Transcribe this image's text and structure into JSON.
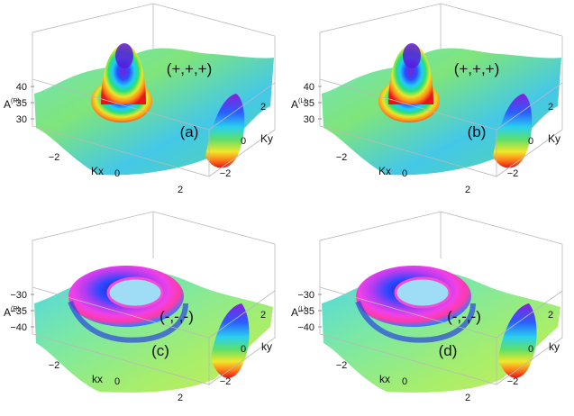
{
  "panels": [
    {
      "label": "(a)",
      "signs": "(+,+,+)",
      "z_axis": {
        "name": "A",
        "superscript": "(R)",
        "ticks": [
          "40",
          "35",
          "30"
        ]
      },
      "x_axis": {
        "name": "Kx",
        "ticks": [
          "−2",
          "0",
          "2"
        ]
      },
      "y_axis": {
        "name": "Ky",
        "ticks": [
          "2",
          "0",
          "−2"
        ]
      },
      "surface": "peak"
    },
    {
      "label": "(b)",
      "signs": "(+,+,+)",
      "z_axis": {
        "name": "A",
        "superscript": "(L)",
        "ticks": [
          "40",
          "35",
          "30"
        ]
      },
      "x_axis": {
        "name": "Kx",
        "ticks": [
          "−2",
          "0",
          "2"
        ]
      },
      "y_axis": {
        "name": "Ky",
        "ticks": [
          "2",
          "0",
          "−2"
        ]
      },
      "surface": "peak"
    },
    {
      "label": "(c)",
      "signs": "(-,-,-)",
      "z_axis": {
        "name": "A",
        "superscript": "(R)",
        "ticks": [
          "−30",
          "−35",
          "−40"
        ]
      },
      "x_axis": {
        "name": "kx",
        "ticks": [
          "−2",
          "0",
          "2"
        ]
      },
      "y_axis": {
        "name": "ky",
        "ticks": [
          "2",
          "0",
          "−2"
        ]
      },
      "surface": "ring"
    },
    {
      "label": "(d)",
      "signs": "(-,-,-)",
      "z_axis": {
        "name": "A",
        "superscript": "(L)",
        "ticks": [
          "−30",
          "−35",
          "−40"
        ]
      },
      "x_axis": {
        "name": "kx",
        "ticks": [
          "−2",
          "0",
          "2"
        ]
      },
      "y_axis": {
        "name": "ky",
        "ticks": [
          "2",
          "0",
          "−2"
        ]
      },
      "surface": "ring"
    }
  ]
}
